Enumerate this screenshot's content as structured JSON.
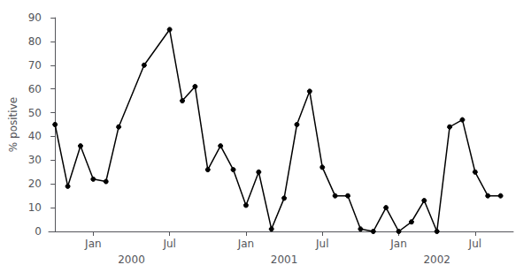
{
  "chart_data": {
    "type": "line",
    "x": [
      0,
      1,
      2,
      3,
      4,
      5,
      7,
      9,
      10,
      11,
      12,
      13,
      14,
      15,
      16,
      17,
      18,
      19,
      20,
      21,
      22,
      23,
      24,
      25,
      26,
      27,
      28,
      29,
      30,
      31,
      32,
      33,
      34,
      35
    ],
    "values": [
      45,
      19,
      36,
      22,
      21,
      44,
      70,
      85,
      55,
      61,
      26,
      36,
      26,
      11,
      25,
      1,
      14,
      45,
      59,
      27,
      15,
      15,
      1,
      0,
      10,
      0,
      4,
      13,
      0,
      44,
      47,
      25,
      15,
      15
    ],
    "color": "#000000",
    "marker": "circle",
    "ylabel": "% positive",
    "xlim": [
      -0.5,
      36
    ],
    "xticks": [
      {
        "value": 3,
        "label": "Jan"
      },
      {
        "value": 9,
        "label": "Jul"
      },
      {
        "value": 15,
        "label": "Jan"
      },
      {
        "value": 21,
        "label": "Jul"
      },
      {
        "value": 27,
        "label": "Jan"
      },
      {
        "value": 33,
        "label": "Jul"
      }
    ],
    "ylim": [
      0,
      90
    ],
    "yticks": [
      0,
      10,
      20,
      30,
      40,
      50,
      60,
      70,
      80,
      90
    ],
    "grid": false,
    "annotations": [
      {
        "x": 6,
        "text": "2000"
      },
      {
        "x": 18,
        "text": "2001"
      },
      {
        "x": 30,
        "text": "2002"
      }
    ]
  }
}
